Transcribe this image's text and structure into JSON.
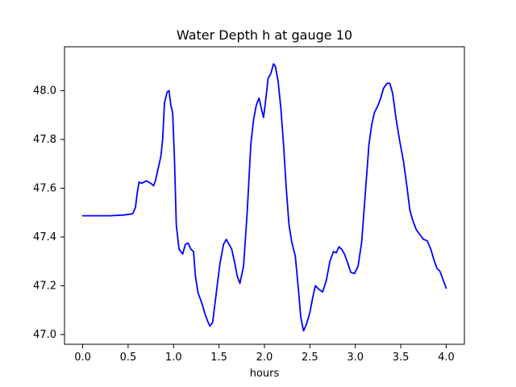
{
  "chart_data": {
    "type": "line",
    "title": "Water Depth h at gauge 10",
    "xlabel": "hours",
    "ylabel": "",
    "xlim": [
      -0.2,
      4.2
    ],
    "ylim": [
      46.96,
      48.18
    ],
    "xticks": [
      0.0,
      0.5,
      1.0,
      1.5,
      2.0,
      2.5,
      3.0,
      3.5,
      4.0
    ],
    "xtick_labels": [
      "0.0",
      "0.5",
      "1.0",
      "1.5",
      "2.0",
      "2.5",
      "3.0",
      "3.5",
      "4.0"
    ],
    "yticks": [
      47.0,
      47.2,
      47.4,
      47.6,
      47.8,
      48.0
    ],
    "ytick_labels": [
      "47.0",
      "47.2",
      "47.4",
      "47.6",
      "47.8",
      "48.0"
    ],
    "grid": false,
    "line_color": "#0000ff",
    "series": [
      {
        "name": "",
        "points": [
          [
            0.0,
            47.487
          ],
          [
            0.15,
            47.487
          ],
          [
            0.3,
            47.487
          ],
          [
            0.45,
            47.49
          ],
          [
            0.55,
            47.495
          ],
          [
            0.58,
            47.52
          ],
          [
            0.6,
            47.58
          ],
          [
            0.62,
            47.625
          ],
          [
            0.65,
            47.62
          ],
          [
            0.7,
            47.63
          ],
          [
            0.75,
            47.62
          ],
          [
            0.78,
            47.61
          ],
          [
            0.8,
            47.63
          ],
          [
            0.83,
            47.68
          ],
          [
            0.86,
            47.73
          ],
          [
            0.88,
            47.8
          ],
          [
            0.9,
            47.95
          ],
          [
            0.93,
            47.995
          ],
          [
            0.95,
            48.0
          ],
          [
            0.97,
            47.94
          ],
          [
            0.99,
            47.91
          ],
          [
            1.01,
            47.72
          ],
          [
            1.03,
            47.45
          ],
          [
            1.06,
            47.35
          ],
          [
            1.1,
            47.33
          ],
          [
            1.13,
            47.37
          ],
          [
            1.16,
            47.375
          ],
          [
            1.19,
            47.35
          ],
          [
            1.22,
            47.34
          ],
          [
            1.24,
            47.24
          ],
          [
            1.27,
            47.17
          ],
          [
            1.31,
            47.13
          ],
          [
            1.35,
            47.08
          ],
          [
            1.38,
            47.05
          ],
          [
            1.4,
            47.035
          ],
          [
            1.43,
            47.05
          ],
          [
            1.47,
            47.17
          ],
          [
            1.51,
            47.29
          ],
          [
            1.55,
            47.37
          ],
          [
            1.58,
            47.39
          ],
          [
            1.61,
            47.37
          ],
          [
            1.64,
            47.35
          ],
          [
            1.67,
            47.3
          ],
          [
            1.7,
            47.24
          ],
          [
            1.73,
            47.21
          ],
          [
            1.77,
            47.28
          ],
          [
            1.81,
            47.5
          ],
          [
            1.85,
            47.78
          ],
          [
            1.88,
            47.88
          ],
          [
            1.91,
            47.94
          ],
          [
            1.94,
            47.97
          ],
          [
            1.97,
            47.92
          ],
          [
            1.99,
            47.89
          ],
          [
            2.01,
            47.95
          ],
          [
            2.04,
            48.05
          ],
          [
            2.07,
            48.07
          ],
          [
            2.1,
            48.11
          ],
          [
            2.12,
            48.1
          ],
          [
            2.15,
            48.04
          ],
          [
            2.18,
            47.93
          ],
          [
            2.21,
            47.78
          ],
          [
            2.24,
            47.6
          ],
          [
            2.27,
            47.45
          ],
          [
            2.3,
            47.38
          ],
          [
            2.34,
            47.32
          ],
          [
            2.37,
            47.2
          ],
          [
            2.4,
            47.07
          ],
          [
            2.43,
            47.015
          ],
          [
            2.46,
            47.04
          ],
          [
            2.5,
            47.09
          ],
          [
            2.53,
            47.15
          ],
          [
            2.56,
            47.2
          ],
          [
            2.6,
            47.185
          ],
          [
            2.64,
            47.175
          ],
          [
            2.68,
            47.22
          ],
          [
            2.72,
            47.3
          ],
          [
            2.76,
            47.34
          ],
          [
            2.79,
            47.335
          ],
          [
            2.82,
            47.36
          ],
          [
            2.85,
            47.35
          ],
          [
            2.88,
            47.33
          ],
          [
            2.91,
            47.3
          ],
          [
            2.95,
            47.255
          ],
          [
            2.99,
            47.25
          ],
          [
            3.03,
            47.28
          ],
          [
            3.07,
            47.38
          ],
          [
            3.11,
            47.58
          ],
          [
            3.15,
            47.78
          ],
          [
            3.18,
            47.86
          ],
          [
            3.21,
            47.91
          ],
          [
            3.25,
            47.94
          ],
          [
            3.28,
            47.97
          ],
          [
            3.31,
            48.01
          ],
          [
            3.35,
            48.03
          ],
          [
            3.38,
            48.03
          ],
          [
            3.41,
            47.99
          ],
          [
            3.45,
            47.88
          ],
          [
            3.49,
            47.79
          ],
          [
            3.53,
            47.71
          ],
          [
            3.57,
            47.6
          ],
          [
            3.6,
            47.51
          ],
          [
            3.63,
            47.47
          ],
          [
            3.67,
            47.43
          ],
          [
            3.71,
            47.41
          ],
          [
            3.75,
            47.39
          ],
          [
            3.79,
            47.385
          ],
          [
            3.83,
            47.35
          ],
          [
            3.87,
            47.3
          ],
          [
            3.9,
            47.27
          ],
          [
            3.93,
            47.26
          ],
          [
            3.96,
            47.23
          ],
          [
            4.0,
            47.19
          ]
        ]
      }
    ]
  }
}
